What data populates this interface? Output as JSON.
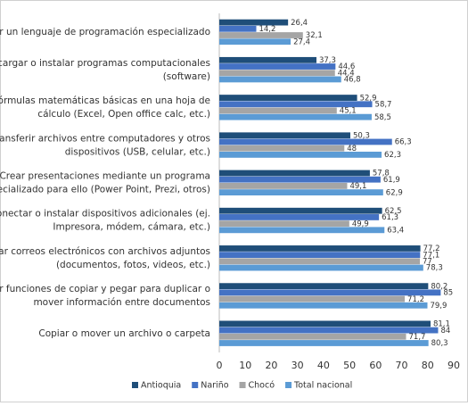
{
  "chart_data": {
    "type": "hbar",
    "categories": [
      [
        "Utilizar un lenguaje de programación especializado"
      ],
      [
        "Descargar o instalar programas computacionales",
        "(software)"
      ],
      [
        "Usar fórmulas matemáticas básicas en una hoja de",
        "cálculo (Excel, Open office calc, etc.)"
      ],
      [
        "Transferir archivos entre computadores y otros",
        "dispositivos (USB, celular, etc.)"
      ],
      [
        "Crear presentaciones mediante un programa",
        "especializado para ello (Power Point, Prezi, otros)"
      ],
      [
        "Conectar o instalar dispositivos adicionales (ej.",
        "Impresora, módem, cámara, etc.)"
      ],
      [
        "Enviar correos electrónicos con archivos adjuntos",
        "(documentos, fotos, videos, etc.)"
      ],
      [
        "Usar funciones de copiar y pegar para duplicar o",
        "mover información entre documentos"
      ],
      [
        "Copiar o mover un archivo o carpeta"
      ]
    ],
    "series": [
      {
        "name": "Antioquia",
        "color": "#1f4e79",
        "values": [
          26.4,
          37.3,
          52.9,
          50.3,
          57.8,
          62.5,
          77.2,
          80.2,
          81.1
        ],
        "value_labels": [
          "26,4",
          "37,3",
          "52,9",
          "50,3",
          "57,8",
          "62,5",
          "77,2",
          "80,2",
          "81,1"
        ]
      },
      {
        "name": "Nariño",
        "color": "#4472c4",
        "values": [
          14.2,
          44.6,
          58.7,
          66.3,
          61.9,
          61.3,
          77.1,
          85,
          84
        ],
        "value_labels": [
          "14,2",
          "44,6",
          "58,7",
          "66,3",
          "61,9",
          "61,3",
          "77,1",
          "85",
          "84"
        ]
      },
      {
        "name": "Chocó",
        "color": "#a5a5a5",
        "values": [
          32.1,
          44.4,
          45.1,
          48,
          49.1,
          49.9,
          77,
          71.2,
          71.7
        ],
        "value_labels": [
          "32,1",
          "44,4",
          "45,1",
          "48",
          "49,1",
          "49,9",
          "77",
          "71,2",
          "71,7"
        ]
      },
      {
        "name": "Total nacional",
        "color": "#5b9bd5",
        "values": [
          27.4,
          46.8,
          58.5,
          62.3,
          62.9,
          63.4,
          78.3,
          79.9,
          80.3
        ],
        "value_labels": [
          "27,4",
          "46,8",
          "58,5",
          "62,3",
          "62,9",
          "63,4",
          "78,3",
          "79,9",
          "80,3"
        ]
      }
    ],
    "xlim": [
      0,
      90
    ],
    "xticks": [
      0,
      10,
      20,
      30,
      40,
      50,
      60,
      70,
      80,
      90
    ],
    "legend": "bottom"
  }
}
